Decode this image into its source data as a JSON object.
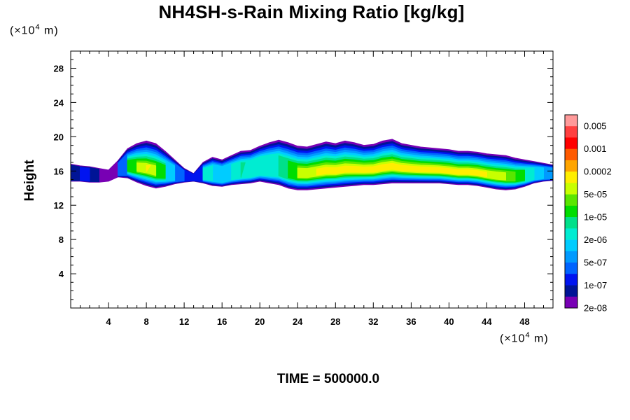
{
  "chart_data": {
    "type": "heatmap",
    "title": "NH4SH-s-Rain Mixing Ratio [kg/kg]",
    "xlabel": "",
    "ylabel": "Height",
    "x_unit_prefix": "(×10",
    "x_unit_exp": "4",
    "x_unit_suffix": " m)",
    "y_unit_prefix": "(×10",
    "y_unit_exp": "4",
    "y_unit_suffix": " m)",
    "footer": "TIME = 500000.0",
    "xlim": [
      0,
      51
    ],
    "ylim": [
      0,
      30
    ],
    "x_ticks": [
      4,
      8,
      12,
      16,
      20,
      24,
      28,
      32,
      36,
      40,
      44,
      48
    ],
    "y_ticks": [
      4,
      8,
      12,
      16,
      20,
      24,
      28
    ],
    "colorbar": {
      "labels": [
        "0.005",
        "0.001",
        "0.0002",
        "5e-05",
        "1e-05",
        "2e-06",
        "5e-07",
        "1e-07",
        "2e-08"
      ],
      "colors_top_to_bottom": [
        "#ff9a9a",
        "#ff4040",
        "#ff0000",
        "#ff5a00",
        "#ffa500",
        "#ffee00",
        "#c8ff00",
        "#5ae600",
        "#00dd00",
        "#00e08a",
        "#00ecd2",
        "#00ccff",
        "#009aff",
        "#0064ff",
        "#0014f0",
        "#001496",
        "#7800b4"
      ]
    },
    "level_colors": [
      "#7800b4",
      "#001496",
      "#0014f0",
      "#0064ff",
      "#009aff",
      "#00ccff",
      "#00ecd2",
      "#00e08a",
      "#00dd00",
      "#5ae600",
      "#c8ff00",
      "#ffee00"
    ],
    "band": {
      "x": [
        0,
        1,
        2,
        3,
        4,
        5,
        6,
        7,
        8,
        9,
        10,
        11,
        12,
        13,
        14,
        15,
        16,
        17,
        18,
        19,
        20,
        21,
        22,
        23,
        24,
        25,
        26,
        27,
        28,
        29,
        30,
        31,
        32,
        33,
        34,
        35,
        36,
        37,
        38,
        39,
        40,
        41,
        42,
        43,
        44,
        45,
        46,
        47,
        48,
        49,
        50,
        51
      ],
      "bottom": [
        14.8,
        14.8,
        14.7,
        14.7,
        14.8,
        15.3,
        15.2,
        14.7,
        14.3,
        14.0,
        14.2,
        14.5,
        14.7,
        14.8,
        14.6,
        14.3,
        14.2,
        14.4,
        14.5,
        14.6,
        14.8,
        14.6,
        14.4,
        14.0,
        13.8,
        13.8,
        13.9,
        14.0,
        14.1,
        14.2,
        14.3,
        14.4,
        14.4,
        14.5,
        14.6,
        14.6,
        14.6,
        14.6,
        14.6,
        14.6,
        14.5,
        14.4,
        14.4,
        14.3,
        14.1,
        13.9,
        13.8,
        13.9,
        14.2,
        14.6,
        14.8,
        14.9
      ],
      "top": [
        16.8,
        16.6,
        16.5,
        16.3,
        16.1,
        17.2,
        18.6,
        19.2,
        19.5,
        19.2,
        18.3,
        17.3,
        16.3,
        15.7,
        17.0,
        17.6,
        17.3,
        17.8,
        18.3,
        18.4,
        18.9,
        19.3,
        19.6,
        19.3,
        18.9,
        18.8,
        19.1,
        19.4,
        19.2,
        19.5,
        19.3,
        19.0,
        19.1,
        19.5,
        19.7,
        19.2,
        19.0,
        18.8,
        18.7,
        18.6,
        18.5,
        18.3,
        18.3,
        18.2,
        18.0,
        17.9,
        17.8,
        17.5,
        17.3,
        17.1,
        16.9,
        16.7
      ],
      "intensity": [
        0.15,
        0.25,
        0.25,
        0.1,
        0.05,
        0.3,
        0.7,
        0.85,
        0.95,
        0.9,
        0.7,
        0.5,
        0.3,
        0.25,
        0.55,
        0.55,
        0.45,
        0.55,
        0.6,
        0.55,
        0.55,
        0.55,
        0.6,
        0.75,
        0.85,
        0.9,
        0.95,
        0.98,
        1.0,
        1.0,
        1.0,
        1.0,
        1.0,
        1.0,
        1.0,
        1.0,
        1.0,
        1.0,
        1.0,
        1.0,
        1.0,
        1.0,
        1.0,
        0.98,
        0.95,
        0.9,
        0.85,
        0.8,
        0.7,
        0.55,
        0.45,
        0.35
      ]
    }
  }
}
